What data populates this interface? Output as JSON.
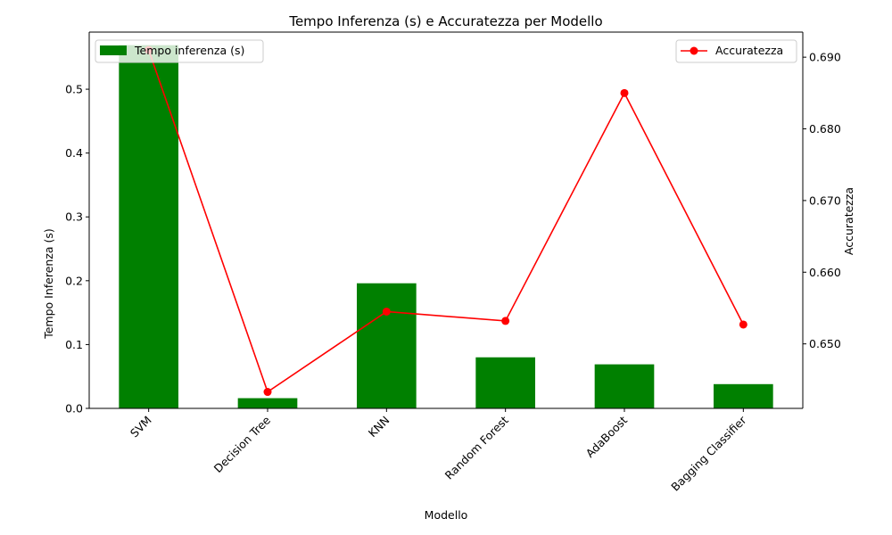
{
  "chart_data": {
    "type": "bar+line",
    "title": "Tempo Inferenza (s) e Accuratezza per Modello",
    "xlabel": "Modello",
    "ylabel_left": "Tempo Inferenza (s)",
    "ylabel_right": "Accuratezza",
    "categories": [
      "SVM",
      "Decision Tree",
      "KNN",
      "Random Forest",
      "AdaBoost",
      "Bagging Classifier"
    ],
    "series": [
      {
        "name": "Tempo inferenza (s)",
        "type": "bar",
        "axis": "left",
        "color": "#008000",
        "values": [
          0.569,
          0.016,
          0.196,
          0.08,
          0.069,
          0.038
        ]
      },
      {
        "name": "Accuratezza",
        "type": "line",
        "axis": "right",
        "color": "#ff0000",
        "marker": "circle",
        "values": [
          0.691,
          0.6433,
          0.6545,
          0.6532,
          0.685,
          0.6527
        ]
      }
    ],
    "ylim_left": [
      0,
      0.5895
    ],
    "ylim_right": [
      0.641,
      0.6935
    ],
    "yticks_left": [
      "0.0",
      "0.1",
      "0.2",
      "0.3",
      "0.4",
      "0.5"
    ],
    "yticks_right": [
      "0.650",
      "0.660",
      "0.670",
      "0.680",
      "0.690"
    ],
    "grid": false,
    "legend_left_position": "upper-left",
    "legend_right_position": "upper-right"
  }
}
